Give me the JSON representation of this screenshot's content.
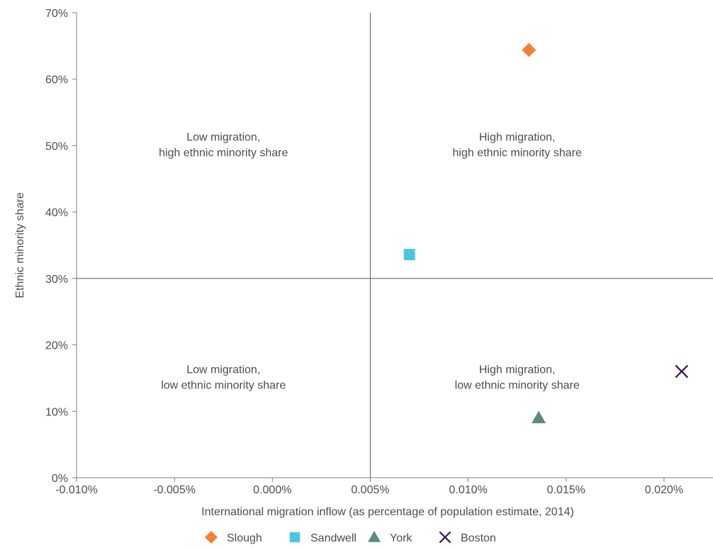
{
  "chart_data": {
    "type": "scatter",
    "xlabel": "International migration inflow (as percentage of population estimate, 2014)",
    "ylabel": "Ethnic minority share",
    "xlim": [
      -0.01,
      0.0225
    ],
    "ylim": [
      0,
      70
    ],
    "x_ticks": [
      -0.01,
      -0.005,
      0.0,
      0.005,
      0.01,
      0.015,
      0.02
    ],
    "y_ticks": [
      0,
      10,
      20,
      30,
      40,
      50,
      60,
      70
    ],
    "x_tick_labels": [
      "-0.010%",
      "-0.005%",
      "0.000%",
      "0.005%",
      "0.010%",
      "0.015%",
      "0.020%"
    ],
    "y_tick_labels": [
      "0%",
      "10%",
      "20%",
      "30%",
      "40%",
      "50%",
      "60%",
      "70%"
    ],
    "divider_x": 0.005,
    "divider_y": 30,
    "quadrant_labels": [
      {
        "lines": [
          "Low migration,",
          "high ethnic minority share"
        ],
        "x": -0.0025,
        "y": 50.5
      },
      {
        "lines": [
          "High migration,",
          "high ethnic minority share"
        ],
        "x": 0.0125,
        "y": 50.5
      },
      {
        "lines": [
          "Low migration,",
          "low ethnic minority share"
        ],
        "x": -0.0025,
        "y": 15.5
      },
      {
        "lines": [
          "High migration,",
          "low ethnic minority share"
        ],
        "x": 0.0125,
        "y": 15.5
      }
    ],
    "series": [
      {
        "name": "Slough",
        "marker": "diamond",
        "color": "#f58231",
        "x": 0.0131,
        "y": 64.4
      },
      {
        "name": "Sandwell",
        "marker": "square",
        "color": "#4cc6df",
        "x": 0.007,
        "y": 33.6
      },
      {
        "name": "York",
        "marker": "triangle",
        "color": "#5b8c74",
        "x": 0.0136,
        "y": 9.0
      },
      {
        "name": "Boston",
        "marker": "cross",
        "color": "#3b1250",
        "x": 0.0209,
        "y": 16.0
      }
    ],
    "grid": false,
    "legend_position": "bottom"
  }
}
